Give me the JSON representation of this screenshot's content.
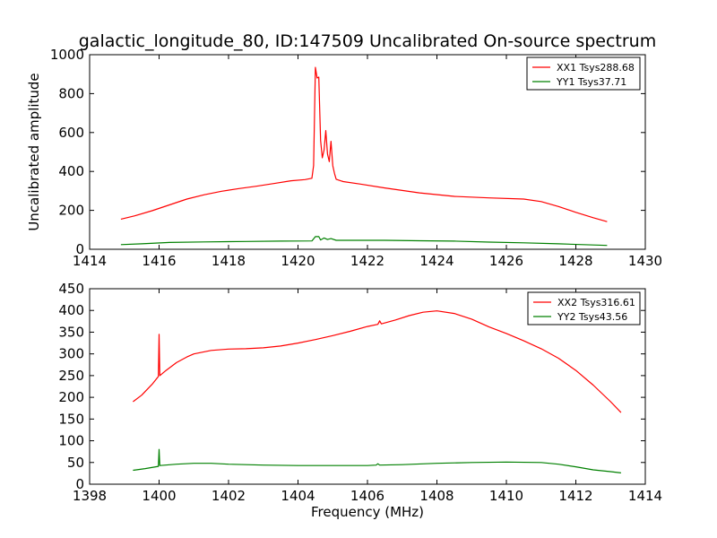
{
  "figure": {
    "title": "galactic_longitude_80, ID:147509 Uncalibrated On-source spectrum",
    "colors": {
      "red": "#ff0000",
      "green": "#008000",
      "axis": "#000000"
    }
  },
  "chart_data": [
    {
      "type": "line",
      "xlabel": "",
      "ylabel": "Uncalibrated amplitude",
      "xlim": [
        1414,
        1430
      ],
      "ylim": [
        0,
        1000
      ],
      "xticks": [
        1414,
        1416,
        1418,
        1420,
        1422,
        1424,
        1426,
        1428,
        1430
      ],
      "yticks": [
        0,
        200,
        400,
        600,
        800,
        1000
      ],
      "legend_position": "top-right",
      "series": [
        {
          "name": "XX1 Tsys288.68",
          "color": "#ff0000",
          "points": [
            [
              1414.9,
              155
            ],
            [
              1415.3,
              172
            ],
            [
              1415.8,
              198
            ],
            [
              1416.3,
              228
            ],
            [
              1416.8,
              258
            ],
            [
              1417.3,
              280
            ],
            [
              1417.8,
              298
            ],
            [
              1418.3,
              312
            ],
            [
              1418.8,
              324
            ],
            [
              1419.3,
              338
            ],
            [
              1419.8,
              352
            ],
            [
              1420.2,
              358
            ],
            [
              1420.4,
              365
            ],
            [
              1420.45,
              430
            ],
            [
              1420.5,
              935
            ],
            [
              1420.55,
              880
            ],
            [
              1420.6,
              885
            ],
            [
              1420.65,
              560
            ],
            [
              1420.7,
              470
            ],
            [
              1420.75,
              510
            ],
            [
              1420.8,
              610
            ],
            [
              1420.85,
              490
            ],
            [
              1420.9,
              450
            ],
            [
              1420.95,
              555
            ],
            [
              1421.0,
              430
            ],
            [
              1421.05,
              390
            ],
            [
              1421.1,
              360
            ],
            [
              1421.3,
              348
            ],
            [
              1421.8,
              335
            ],
            [
              1422.5,
              315
            ],
            [
              1423.5,
              290
            ],
            [
              1424.5,
              272
            ],
            [
              1425.5,
              264
            ],
            [
              1426.5,
              258
            ],
            [
              1427.0,
              245
            ],
            [
              1427.5,
              220
            ],
            [
              1428.0,
              190
            ],
            [
              1428.5,
              162
            ],
            [
              1428.9,
              142
            ]
          ]
        },
        {
          "name": "YY1 Tsys37.71",
          "color": "#008000",
          "points": [
            [
              1414.9,
              24
            ],
            [
              1415.5,
              28
            ],
            [
              1416.3,
              35
            ],
            [
              1417.3,
              38
            ],
            [
              1418.5,
              40
            ],
            [
              1419.5,
              42
            ],
            [
              1420.4,
              43
            ],
            [
              1420.5,
              65
            ],
            [
              1420.6,
              65
            ],
            [
              1420.65,
              48
            ],
            [
              1420.75,
              58
            ],
            [
              1420.85,
              50
            ],
            [
              1420.95,
              55
            ],
            [
              1421.1,
              46
            ],
            [
              1422.5,
              46
            ],
            [
              1423.5,
              44
            ],
            [
              1424.5,
              42
            ],
            [
              1425.5,
              37
            ],
            [
              1426.5,
              33
            ],
            [
              1427.5,
              28
            ],
            [
              1428.5,
              22
            ],
            [
              1428.9,
              20
            ]
          ]
        }
      ]
    },
    {
      "type": "line",
      "xlabel": "Frequency (MHz)",
      "ylabel": "",
      "xlim": [
        1398,
        1414
      ],
      "ylim": [
        0,
        450
      ],
      "xticks": [
        1398,
        1400,
        1402,
        1404,
        1406,
        1408,
        1410,
        1412,
        1414
      ],
      "yticks": [
        0,
        50,
        100,
        150,
        200,
        250,
        300,
        350,
        400,
        450
      ],
      "legend_position": "top-right",
      "series": [
        {
          "name": "XX2 Tsys316.61",
          "color": "#ff0000",
          "points": [
            [
              1399.25,
              190
            ],
            [
              1399.5,
              205
            ],
            [
              1399.8,
              230
            ],
            [
              1399.98,
              248
            ],
            [
              1400.0,
              345
            ],
            [
              1400.02,
              250
            ],
            [
              1400.2,
              262
            ],
            [
              1400.5,
              280
            ],
            [
              1400.8,
              293
            ],
            [
              1401.0,
              300
            ],
            [
              1401.5,
              308
            ],
            [
              1402.0,
              311
            ],
            [
              1402.5,
              312
            ],
            [
              1403.0,
              314
            ],
            [
              1403.5,
              318
            ],
            [
              1404.0,
              325
            ],
            [
              1404.5,
              333
            ],
            [
              1405.0,
              342
            ],
            [
              1405.5,
              352
            ],
            [
              1406.0,
              363
            ],
            [
              1406.3,
              368
            ],
            [
              1406.35,
              376
            ],
            [
              1406.4,
              369
            ],
            [
              1406.8,
              378
            ],
            [
              1407.2,
              388
            ],
            [
              1407.6,
              396
            ],
            [
              1408.0,
              399
            ],
            [
              1408.5,
              393
            ],
            [
              1409.0,
              380
            ],
            [
              1409.5,
              362
            ],
            [
              1410.0,
              347
            ],
            [
              1410.5,
              330
            ],
            [
              1411.0,
              312
            ],
            [
              1411.5,
              290
            ],
            [
              1412.0,
              262
            ],
            [
              1412.5,
              228
            ],
            [
              1413.0,
              190
            ],
            [
              1413.3,
              165
            ]
          ]
        },
        {
          "name": "YY2 Tsys43.56",
          "color": "#008000",
          "points": [
            [
              1399.25,
              32
            ],
            [
              1399.6,
              36
            ],
            [
              1399.98,
              41
            ],
            [
              1400.0,
              80
            ],
            [
              1400.02,
              43
            ],
            [
              1400.5,
              46
            ],
            [
              1401.0,
              48
            ],
            [
              1401.5,
              48
            ],
            [
              1402.0,
              46
            ],
            [
              1403.0,
              44
            ],
            [
              1404.0,
              43
            ],
            [
              1405.0,
              43
            ],
            [
              1406.0,
              43
            ],
            [
              1406.25,
              44
            ],
            [
              1406.3,
              47
            ],
            [
              1406.35,
              44
            ],
            [
              1407.0,
              45
            ],
            [
              1408.0,
              48
            ],
            [
              1409.0,
              50
            ],
            [
              1410.0,
              51
            ],
            [
              1411.0,
              50
            ],
            [
              1411.5,
              46
            ],
            [
              1412.0,
              40
            ],
            [
              1412.5,
              33
            ],
            [
              1413.0,
              29
            ],
            [
              1413.3,
              26
            ]
          ]
        }
      ]
    }
  ]
}
